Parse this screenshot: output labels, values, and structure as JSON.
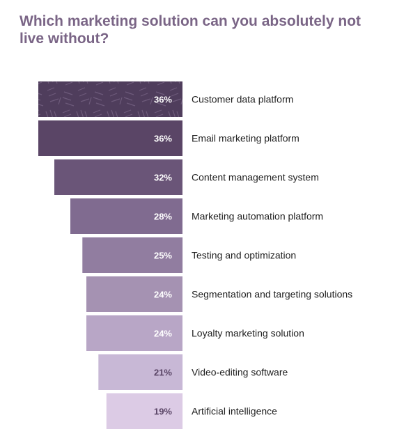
{
  "title": "Which marketing solution can you absolutely not live without?",
  "chart_data": {
    "type": "bar",
    "orientation": "horizontal",
    "title": "Which marketing solution can you absolutely not live without?",
    "xlabel": "",
    "ylabel": "",
    "unit": "%",
    "xlim": [
      0,
      36
    ],
    "grid": false,
    "legend": "none",
    "categories": [
      "Customer data platform",
      "Email marketing platform",
      "Content management system",
      "Marketing automation platform",
      "Testing and optimization",
      "Segmentation and targeting solutions",
      "Loyalty marketing solution",
      "Video-editing software",
      "Artificial intelligence"
    ],
    "values": [
      36,
      36,
      32,
      28,
      25,
      24,
      24,
      21,
      19
    ],
    "value_labels": [
      "36%",
      "36%",
      "32%",
      "28%",
      "25%",
      "24%",
      "24%",
      "21%",
      "19%"
    ],
    "colors": [
      "#4f3d5c",
      "#5a4566",
      "#6a5578",
      "#806b90",
      "#917da0",
      "#a592b2",
      "#b8a6c6",
      "#c8b8d6",
      "#dccbe5"
    ],
    "value_text_colors": [
      "#ffffff",
      "#ffffff",
      "#ffffff",
      "#ffffff",
      "#ffffff",
      "#ffffff",
      "#ffffff",
      "#5a4566",
      "#5a4566"
    ],
    "first_bar_patterned": true
  }
}
